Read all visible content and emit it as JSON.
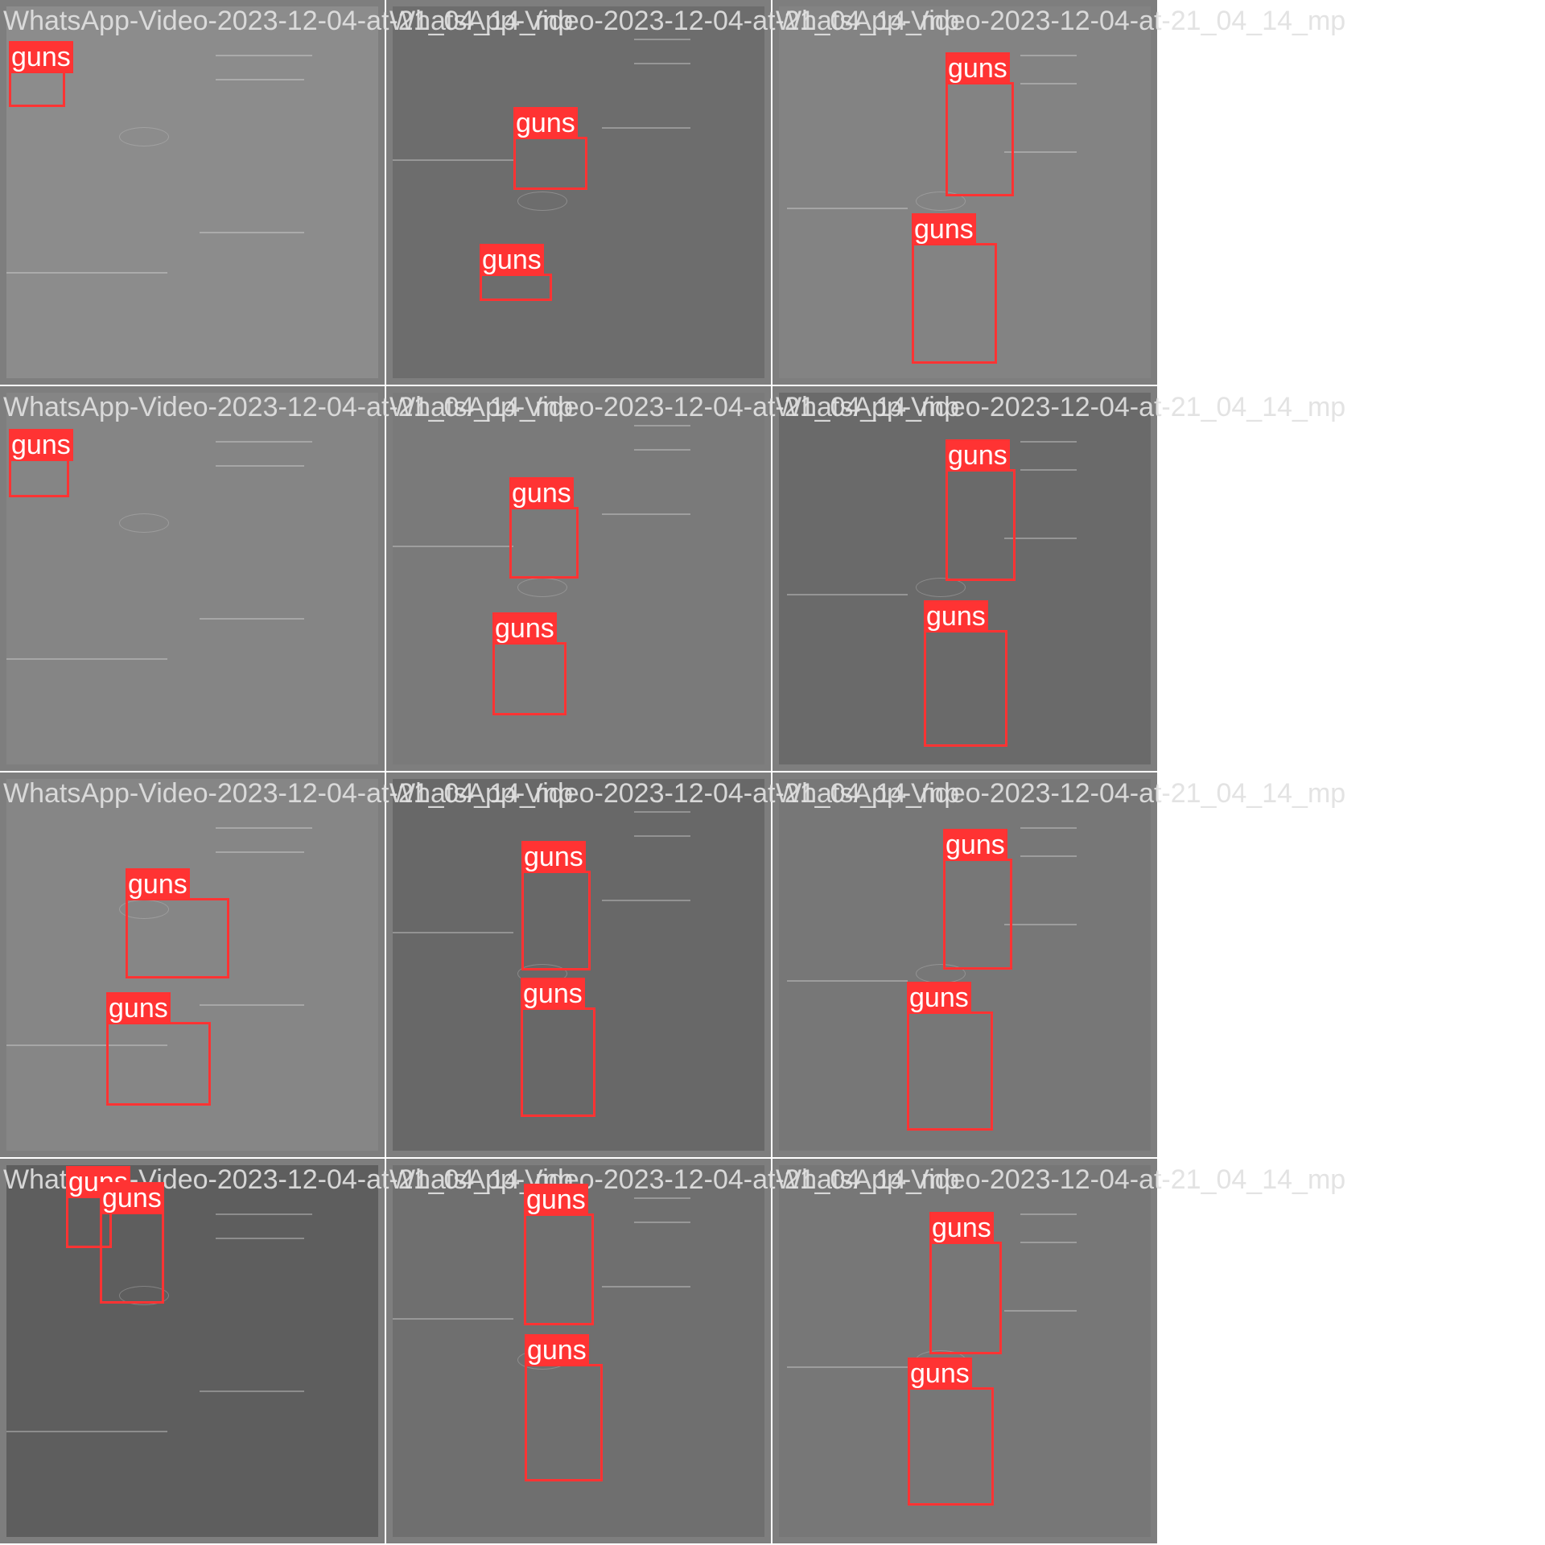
{
  "tile_filename": "WhatsApp-Video-2023-12-04-at-21_04_14_mp",
  "class_label": "guns",
  "colors": {
    "box": "#ff3333",
    "label_text": "#ffffff",
    "filename_text": "#e1e1e1"
  },
  "grid": {
    "rows": 4,
    "cols": 3
  },
  "tiles": [
    {
      "bg": "#8c8c8c"
    },
    {
      "bg": "#6d6d6d"
    },
    {
      "bg": "#838383"
    },
    {
      "bg": "#858585"
    },
    {
      "bg": "#7a7a7a"
    },
    {
      "bg": "#6a6a6a"
    },
    {
      "bg": "#868686"
    },
    {
      "bg": "#686868"
    },
    {
      "bg": "#777777"
    },
    {
      "bg": "#5e5e5e"
    },
    {
      "bg": "#6f6f6f"
    },
    {
      "bg": "#777777"
    }
  ]
}
